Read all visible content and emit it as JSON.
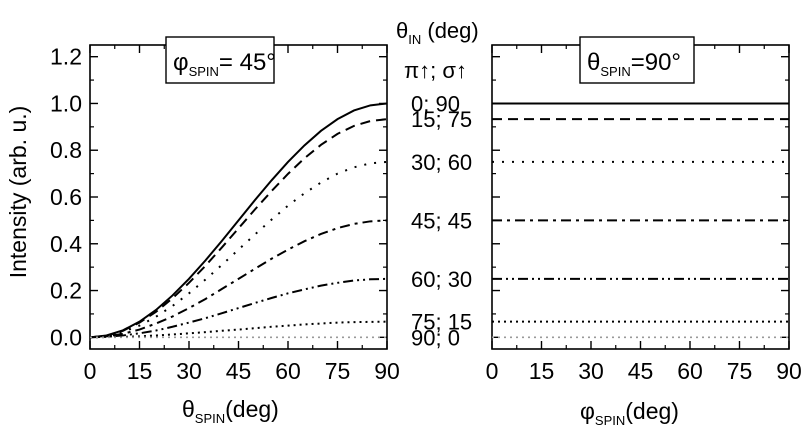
{
  "figure": {
    "middle_header_symbol": "θ",
    "middle_header_sub": "IN",
    "middle_header_unit": " (deg)",
    "middle_header_pol": "π↑; σ↑"
  },
  "chart_data": [
    {
      "type": "line",
      "panel": "left",
      "annotation_symbol": "φ",
      "annotation_sub": "SPIN",
      "annotation_value": "= 45°",
      "xlabel_symbol": "θ",
      "xlabel_sub": "SPIN",
      "xlabel_unit": "(deg)",
      "ylabel": "Intensity (arb. u.)",
      "xlim": [
        0,
        90
      ],
      "ylim": [
        -0.05,
        1.25
      ],
      "xticks": [
        "0",
        "15",
        "30",
        "45",
        "60",
        "75",
        "90"
      ],
      "yticks": [
        "0.0",
        "0.2",
        "0.4",
        "0.6",
        "0.8",
        "1.0",
        "1.2"
      ],
      "grid": false,
      "legend": "none",
      "x": [
        0,
        5,
        10,
        15,
        20,
        25,
        30,
        35,
        40,
        45,
        50,
        55,
        60,
        65,
        70,
        75,
        80,
        85,
        90
      ],
      "series": [
        {
          "style": "solid",
          "values": [
            0.0,
            0.008,
            0.03,
            0.067,
            0.117,
            0.179,
            0.25,
            0.329,
            0.413,
            0.5,
            0.587,
            0.671,
            0.75,
            0.821,
            0.883,
            0.933,
            0.97,
            0.992,
            1.0
          ]
        },
        {
          "style": "dash",
          "values": [
            0.0,
            0.007,
            0.028,
            0.063,
            0.109,
            0.167,
            0.233,
            0.306,
            0.385,
            0.466,
            0.547,
            0.625,
            0.699,
            0.766,
            0.823,
            0.87,
            0.904,
            0.925,
            0.933
          ]
        },
        {
          "style": "dot-wide",
          "values": [
            0.0,
            0.006,
            0.023,
            0.05,
            0.088,
            0.134,
            0.188,
            0.247,
            0.31,
            0.375,
            0.44,
            0.503,
            0.563,
            0.616,
            0.662,
            0.7,
            0.727,
            0.744,
            0.75
          ]
        },
        {
          "style": "dash-dot",
          "values": [
            0.0,
            0.004,
            0.015,
            0.033,
            0.059,
            0.089,
            0.125,
            0.164,
            0.207,
            0.25,
            0.293,
            0.336,
            0.375,
            0.411,
            0.442,
            0.467,
            0.485,
            0.496,
            0.5
          ]
        },
        {
          "style": "dash-dot-dot",
          "values": [
            0.0,
            0.002,
            0.008,
            0.017,
            0.029,
            0.045,
            0.063,
            0.082,
            0.103,
            0.125,
            0.147,
            0.168,
            0.188,
            0.205,
            0.221,
            0.233,
            0.243,
            0.248,
            0.25
          ]
        },
        {
          "style": "short-dot",
          "values": [
            0.0,
            0.001,
            0.002,
            0.004,
            0.008,
            0.012,
            0.017,
            0.022,
            0.028,
            0.033,
            0.039,
            0.045,
            0.05,
            0.055,
            0.059,
            0.063,
            0.065,
            0.066,
            0.067
          ]
        },
        {
          "style": "faint-dot",
          "values": [
            0.0,
            0.0,
            0.0,
            0.0,
            0.0,
            0.0,
            0.0,
            0.0,
            0.0,
            0.0,
            0.0,
            0.0,
            0.0,
            0.0,
            0.0,
            0.0,
            0.0,
            0.0,
            0.0
          ]
        }
      ]
    },
    {
      "type": "line",
      "panel": "right",
      "annotation_symbol": "θ",
      "annotation_sub": "SPIN",
      "annotation_value": "=90°",
      "xlabel_symbol": "φ",
      "xlabel_sub": "SPIN",
      "xlabel_unit": "(deg)",
      "xlim": [
        0,
        90
      ],
      "ylim": [
        -0.05,
        1.25
      ],
      "xticks": [
        "0",
        "15",
        "30",
        "45",
        "60",
        "75",
        "90"
      ],
      "grid": false,
      "legend": "none",
      "x": [
        0,
        90
      ],
      "series": [
        {
          "label": "0; 90",
          "style": "solid",
          "values": [
            1.0,
            1.0
          ]
        },
        {
          "label": "15; 75",
          "style": "dash",
          "values": [
            0.933,
            0.933
          ]
        },
        {
          "label": "30; 60",
          "style": "dot-wide",
          "values": [
            0.75,
            0.75
          ]
        },
        {
          "label": "45; 45",
          "style": "dash-dot",
          "values": [
            0.5,
            0.5
          ]
        },
        {
          "label": "60; 30",
          "style": "dash-dot-dot",
          "values": [
            0.25,
            0.25
          ]
        },
        {
          "label": "75; 15",
          "style": "short-dot",
          "values": [
            0.067,
            0.067
          ]
        },
        {
          "label": "90; 0",
          "style": "faint-dot",
          "values": [
            0.0,
            0.0
          ]
        }
      ]
    }
  ]
}
